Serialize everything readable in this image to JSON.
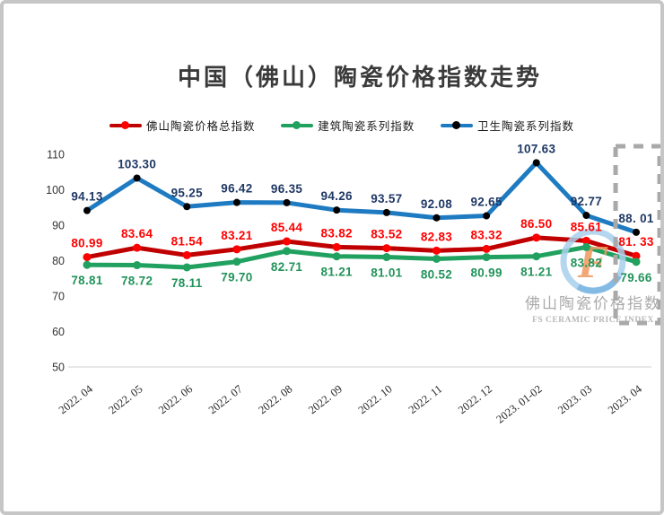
{
  "frame": {
    "background": "#ffffff",
    "border_color": "#c6c6c6"
  },
  "chart_data": {
    "type": "line",
    "title": "中国（佛山）陶瓷价格指数走势",
    "xlabel": "",
    "ylabel": "",
    "ylim": [
      50,
      110
    ],
    "yticks": [
      50,
      60,
      70,
      80,
      90,
      100,
      110
    ],
    "grid": false,
    "legend_position": "top",
    "categories": [
      "2022. 04",
      "2022. 05",
      "2022. 06",
      "2022. 07",
      "2022. 08",
      "2022. 09",
      "2022. 10",
      "2022. 11",
      "2022. 12",
      "2023. 01-02",
      "2023. 03",
      "2023. 04"
    ],
    "series": [
      {
        "name": "佛山陶瓷价格总指数",
        "color": "#c00000",
        "marker_color": "#ff0000",
        "label_color": "#ff0000",
        "label_side": "above",
        "values": [
          80.99,
          83.64,
          81.54,
          83.21,
          85.44,
          83.82,
          83.52,
          82.83,
          83.32,
          86.5,
          85.61,
          81.33
        ],
        "labels": [
          "80.99",
          "83.64",
          "81.54",
          "83.21",
          "85.44",
          "83.82",
          "83.52",
          "82.83",
          "83.32",
          "86.50",
          "85.61",
          "81. 33"
        ]
      },
      {
        "name": "建筑陶瓷系列指数",
        "color": "#21a15f",
        "marker_color": "#21a15f",
        "label_color": "#21935a",
        "label_side": "below",
        "values": [
          78.81,
          78.72,
          78.11,
          79.7,
          82.71,
          81.21,
          81.01,
          80.52,
          80.99,
          81.21,
          83.82,
          79.66
        ],
        "labels": [
          "78.81",
          "78.72",
          "78.11",
          "79.70",
          "82.71",
          "81.21",
          "81.01",
          "80.52",
          "80.99",
          "81.21",
          "83.82",
          "79.66"
        ]
      },
      {
        "name": "卫生陶瓷系列指数",
        "color": "#1e7bc2",
        "marker_color": "#000000",
        "label_color": "#1f3864",
        "label_side": "above",
        "values": [
          94.13,
          103.3,
          95.25,
          96.42,
          96.35,
          94.26,
          93.57,
          92.08,
          92.65,
          107.63,
          92.77,
          88.01
        ],
        "labels": [
          "94.13",
          "103.30",
          "95.25",
          "96.42",
          "96.35",
          "94.26",
          "93.57",
          "92.08",
          "92.65",
          "107.63",
          "92.77",
          "88. 01"
        ]
      }
    ],
    "highlight_box": {
      "category": "2023. 04",
      "color": "#a9a9a9"
    },
    "watermark": {
      "logo_letter": "F",
      "ring_color": "#a9d0ed",
      "ring_accent_color": "#6fb0e0",
      "letter_color": "#f09a5f",
      "line1": "佛山陶瓷价格指数",
      "line2": "FS CERAMIC PRICE INDEX"
    }
  }
}
